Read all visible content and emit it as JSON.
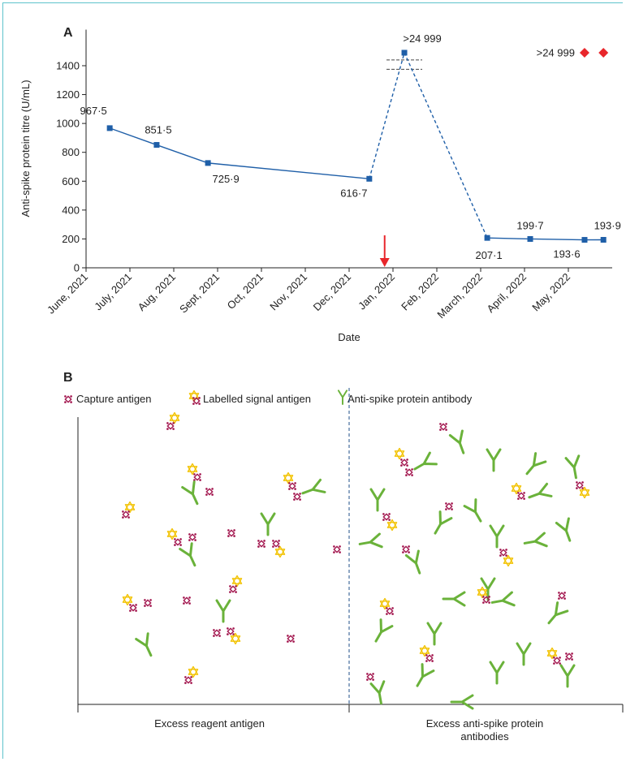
{
  "chart_data": {
    "type": "line",
    "panel_label": "A",
    "x_label": "Date",
    "y_label": "Anti-spike protein titre (U/mL)",
    "x": [
      0.54,
      1.61,
      2.78,
      6.46,
      7.26,
      9.15,
      10.13,
      11.37,
      11.8
    ],
    "xlim": [
      0,
      12
    ],
    "xticks": [
      {
        "value": 0,
        "label": "June, 2021"
      },
      {
        "value": 1,
        "label": "July, 2021"
      },
      {
        "value": 2,
        "label": "Aug, 2021"
      },
      {
        "value": 3,
        "label": "Sept, 2021"
      },
      {
        "value": 4,
        "label": "Oct, 2021"
      },
      {
        "value": 5,
        "label": "Nov, 2021"
      },
      {
        "value": 6,
        "label": "Dec, 2021"
      },
      {
        "value": 7,
        "label": "Jan, 2022"
      },
      {
        "value": 8,
        "label": "Feb, 2022"
      },
      {
        "value": 9,
        "label": "March, 2022"
      },
      {
        "value": 10,
        "label": "April, 2022"
      },
      {
        "value": 11,
        "label": "May, 2022"
      }
    ],
    "ylim": [
      0,
      1650
    ],
    "yticks": [
      0,
      200,
      400,
      600,
      800,
      1000,
      1200,
      1400
    ],
    "y_break": {
      "lower": 1420,
      "upper": 24929
    },
    "series": [
      {
        "color": "#1f5fa8",
        "marker": "square",
        "line": true,
        "values": [
          967.5,
          851.5,
          725.9,
          616.7,
          24999,
          207.1,
          199.7,
          193.6,
          193.9
        ],
        "value_labels": [
          "967·5",
          "851·5",
          "725·9",
          "616·7",
          ">24 999",
          "207·1",
          "199·7",
          "193·6",
          "193·9"
        ]
      },
      {
        "color": "#e8262b",
        "marker": "diamond",
        "line": false,
        "values": [
          null,
          null,
          null,
          null,
          null,
          null,
          null,
          24999,
          24999
        ],
        "value_labels": [
          null,
          null,
          null,
          null,
          null,
          null,
          null,
          ">24 999",
          null
        ]
      }
    ],
    "arrow": {
      "x": 6.81,
      "color": "#e8262b"
    }
  },
  "diagram": {
    "panel_label": "B",
    "legend": [
      "Capture antigen",
      "Labelled signal antigen",
      "Anti-spike protein antibody"
    ],
    "sections": [
      "Excess reagent antigen",
      "Excess anti-spike protein antibodies"
    ]
  }
}
